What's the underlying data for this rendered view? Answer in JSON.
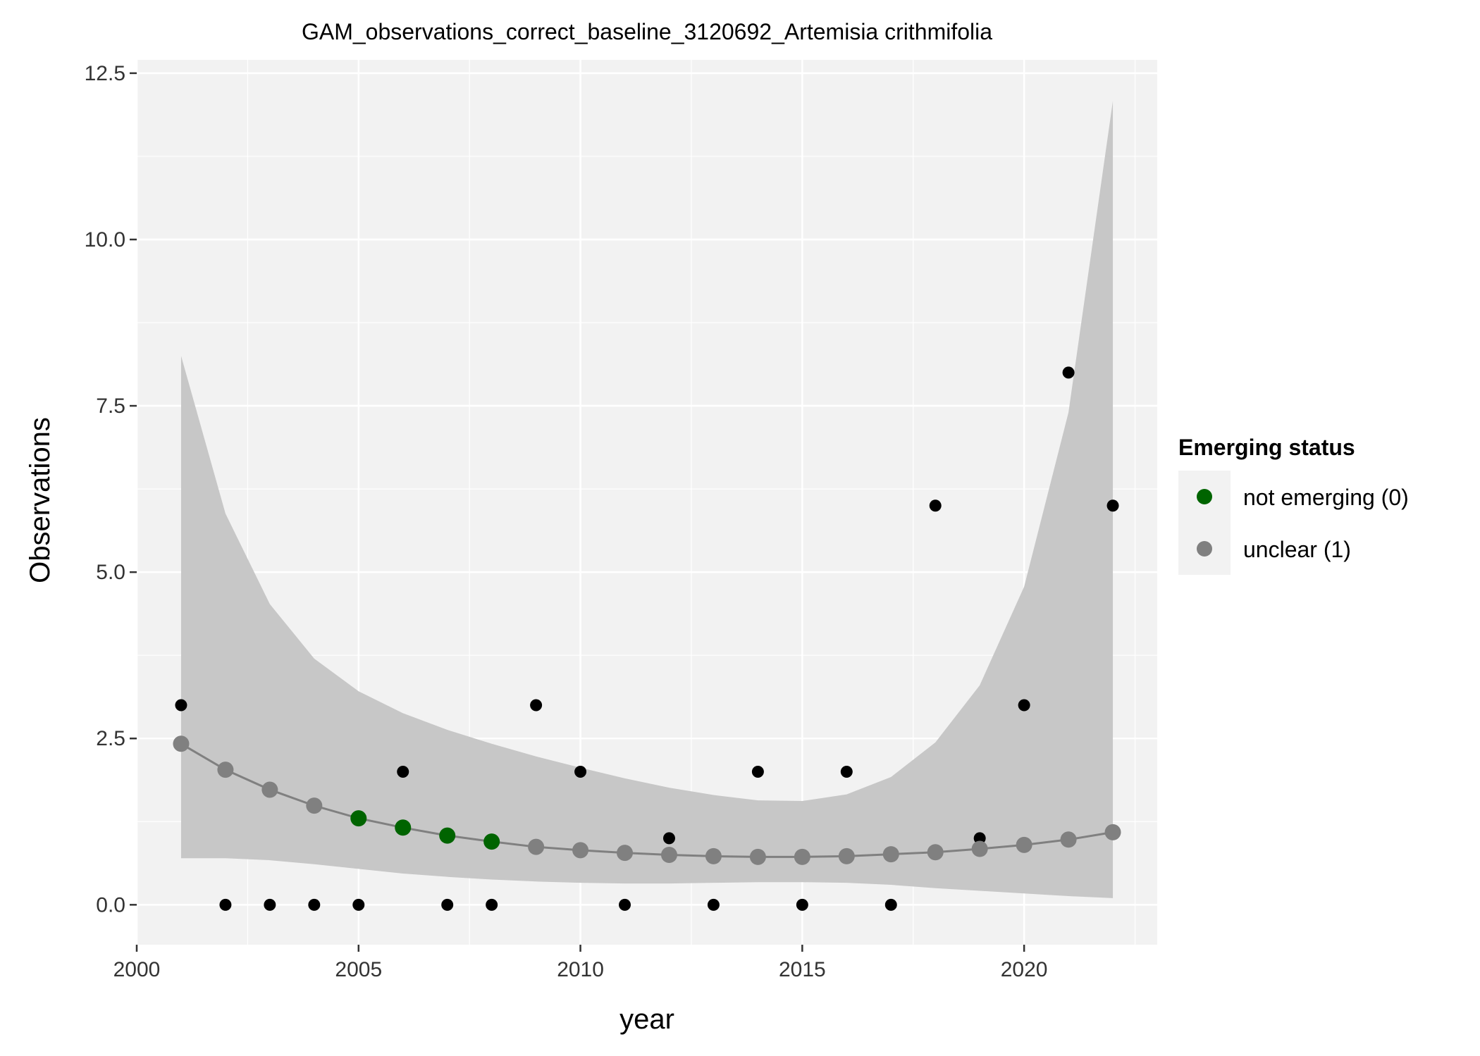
{
  "chart_data": {
    "type": "scatter",
    "title": "GAM_observations_correct_baseline_3120692_Artemisia crithmifolia",
    "xlabel": "year",
    "ylabel": "Observations",
    "xlim": [
      2000,
      2023
    ],
    "ylim": [
      -0.6,
      12.7
    ],
    "x_ticks": [
      2000,
      2005,
      2010,
      2015,
      2020
    ],
    "x_tick_labels": [
      "2000",
      "2005",
      "2010",
      "2015",
      "2020"
    ],
    "y_ticks": [
      0,
      2.5,
      5,
      7.5,
      10,
      12.5
    ],
    "y_tick_labels": [
      "0.0",
      "2.5",
      "5.0",
      "7.5",
      "10.0",
      "12.5"
    ],
    "grid": true,
    "legend": {
      "title": "Emerging status",
      "position": "right",
      "entries": [
        {
          "label": "not emerging (0)",
          "color": "#006400"
        },
        {
          "label": "unclear (1)",
          "color": "#808080"
        }
      ]
    },
    "colors": {
      "panel": "#f2f2f2",
      "grid": "#ffffff",
      "ribbon": "#c4c4c4",
      "fit_line": "#808080",
      "observed": "#000000",
      "not_emerging": "#006400",
      "unclear": "#808080"
    },
    "observed": [
      {
        "x": 2001,
        "y": 3
      },
      {
        "x": 2002,
        "y": 0
      },
      {
        "x": 2003,
        "y": 0
      },
      {
        "x": 2004,
        "y": 0
      },
      {
        "x": 2005,
        "y": 0
      },
      {
        "x": 2006,
        "y": 2
      },
      {
        "x": 2007,
        "y": 0
      },
      {
        "x": 2008,
        "y": 0
      },
      {
        "x": 2009,
        "y": 3
      },
      {
        "x": 2010,
        "y": 2
      },
      {
        "x": 2011,
        "y": 0
      },
      {
        "x": 2012,
        "y": 1
      },
      {
        "x": 2013,
        "y": 0
      },
      {
        "x": 2014,
        "y": 2
      },
      {
        "x": 2015,
        "y": 0
      },
      {
        "x": 2016,
        "y": 2
      },
      {
        "x": 2017,
        "y": 0
      },
      {
        "x": 2018,
        "y": 6
      },
      {
        "x": 2019,
        "y": 1
      },
      {
        "x": 2020,
        "y": 3
      },
      {
        "x": 2021,
        "y": 8
      },
      {
        "x": 2022,
        "y": 6
      }
    ],
    "fitted": [
      {
        "x": 2001,
        "y": 2.42,
        "lower": 0.7,
        "upper": 8.25,
        "status": "unclear (1)"
      },
      {
        "x": 2002,
        "y": 2.03,
        "lower": 0.7,
        "upper": 5.88,
        "status": "unclear (1)"
      },
      {
        "x": 2003,
        "y": 1.73,
        "lower": 0.67,
        "upper": 4.52,
        "status": "unclear (1)"
      },
      {
        "x": 2004,
        "y": 1.49,
        "lower": 0.61,
        "upper": 3.7,
        "status": "unclear (1)"
      },
      {
        "x": 2005,
        "y": 1.3,
        "lower": 0.54,
        "upper": 3.21,
        "status": "not emerging (0)"
      },
      {
        "x": 2006,
        "y": 1.16,
        "lower": 0.47,
        "upper": 2.88,
        "status": "not emerging (0)"
      },
      {
        "x": 2007,
        "y": 1.04,
        "lower": 0.42,
        "upper": 2.63,
        "status": "not emerging (0)"
      },
      {
        "x": 2008,
        "y": 0.95,
        "lower": 0.38,
        "upper": 2.42,
        "status": "not emerging (0)"
      },
      {
        "x": 2009,
        "y": 0.87,
        "lower": 0.35,
        "upper": 2.23,
        "status": "unclear (1)"
      },
      {
        "x": 2010,
        "y": 0.82,
        "lower": 0.33,
        "upper": 2.06,
        "status": "unclear (1)"
      },
      {
        "x": 2011,
        "y": 0.78,
        "lower": 0.32,
        "upper": 1.9,
        "status": "unclear (1)"
      },
      {
        "x": 2012,
        "y": 0.75,
        "lower": 0.32,
        "upper": 1.76,
        "status": "unclear (1)"
      },
      {
        "x": 2013,
        "y": 0.73,
        "lower": 0.33,
        "upper": 1.65,
        "status": "unclear (1)"
      },
      {
        "x": 2014,
        "y": 0.72,
        "lower": 0.34,
        "upper": 1.57,
        "status": "unclear (1)"
      },
      {
        "x": 2015,
        "y": 0.72,
        "lower": 0.34,
        "upper": 1.56,
        "status": "unclear (1)"
      },
      {
        "x": 2016,
        "y": 0.73,
        "lower": 0.33,
        "upper": 1.66,
        "status": "unclear (1)"
      },
      {
        "x": 2017,
        "y": 0.76,
        "lower": 0.3,
        "upper": 1.92,
        "status": "unclear (1)"
      },
      {
        "x": 2018,
        "y": 0.79,
        "lower": 0.25,
        "upper": 2.44,
        "status": "unclear (1)"
      },
      {
        "x": 2019,
        "y": 0.84,
        "lower": 0.21,
        "upper": 3.3,
        "status": "unclear (1)"
      },
      {
        "x": 2020,
        "y": 0.9,
        "lower": 0.17,
        "upper": 4.78,
        "status": "unclear (1)"
      },
      {
        "x": 2021,
        "y": 0.98,
        "lower": 0.13,
        "upper": 7.4,
        "status": "unclear (1)"
      },
      {
        "x": 2022,
        "y": 1.09,
        "lower": 0.1,
        "upper": 12.08,
        "status": "unclear (1)"
      }
    ]
  }
}
